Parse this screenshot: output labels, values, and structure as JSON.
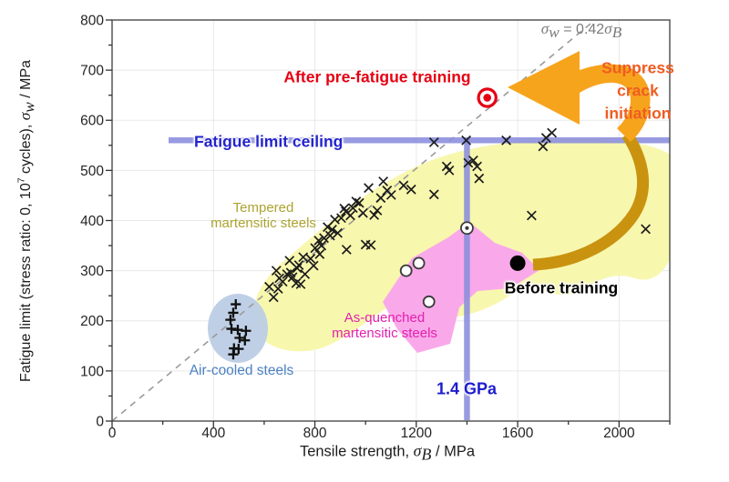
{
  "chart_data": {
    "type": "scatter",
    "x_axis": {
      "label_pre": "Tensile strength, ",
      "label_sym": "σ",
      "label_sub": "B",
      "label_post": " / MPa",
      "ticks": [
        0,
        400,
        800,
        1200,
        1600,
        2000
      ],
      "minor_step": 200,
      "max": 2200
    },
    "y_axis": {
      "label_pre": "Fatigue limit (stress ratio: 0, 10",
      "label_sup": "7",
      "label_mid": " cycles), ",
      "label_sym": "σ",
      "label_sub": "w",
      "label_post": " / MPa",
      "ticks": [
        0,
        100,
        200,
        300,
        400,
        500,
        600,
        700,
        800
      ],
      "minor_step": 50,
      "max": 800
    },
    "grid": true,
    "reference_line": {
      "slope": 0.42,
      "color": "#9a9a9a",
      "label_color": "#7b7c7e",
      "label_sym1": "σ",
      "label_sub1": "w",
      "label_mid": " = 0.42",
      "label_sym2": "σ",
      "label_sub2": "B"
    },
    "fatigue_limit_ceiling": {
      "label": "Fatigue limit ceiling",
      "value": 560,
      "color": "#8a8edd",
      "label_color": "#2424cd"
    },
    "strength_line": {
      "label": "1.4 GPa",
      "value": 1400,
      "color": "#8a8edd",
      "label_color": "#1d1dcf"
    },
    "regions": [
      {
        "id": "tempered",
        "label_lines": [
          "Tempered",
          "martensitic steels"
        ],
        "label_color": "#ada32f",
        "fill": "#f8f7ae"
      },
      {
        "id": "as_quenched",
        "label_lines": [
          "As-quenched",
          "martensitic steels"
        ],
        "label_color": "#e420ae",
        "fill": "#f9a9e9"
      },
      {
        "id": "air_cooled",
        "label": "Air-cooled steels",
        "label_color": "#4a80c2",
        "fill": "#bccde5"
      }
    ],
    "series": [
      {
        "name": "tempered-martensitic-steels",
        "marker": "x",
        "color": "#1c1c1c",
        "points": [
          [
            620,
            268
          ],
          [
            637,
            247
          ],
          [
            648,
            300
          ],
          [
            655,
            264
          ],
          [
            660,
            285
          ],
          [
            673,
            278
          ],
          [
            690,
            293
          ],
          [
            700,
            320
          ],
          [
            705,
            296
          ],
          [
            712,
            287
          ],
          [
            726,
            275
          ],
          [
            730,
            305
          ],
          [
            737,
            311
          ],
          [
            744,
            273
          ],
          [
            754,
            327
          ],
          [
            761,
            293
          ],
          [
            783,
            324
          ],
          [
            795,
            310
          ],
          [
            801,
            345
          ],
          [
            815,
            360
          ],
          [
            819,
            333
          ],
          [
            826,
            350
          ],
          [
            836,
            365
          ],
          [
            850,
            387
          ],
          [
            860,
            370
          ],
          [
            868,
            382
          ],
          [
            879,
            402
          ],
          [
            890,
            375
          ],
          [
            904,
            405
          ],
          [
            916,
            424
          ],
          [
            922,
            418
          ],
          [
            925,
            342
          ],
          [
            940,
            410
          ],
          [
            950,
            425
          ],
          [
            963,
            438
          ],
          [
            975,
            435
          ],
          [
            990,
            415
          ],
          [
            1000,
            352
          ],
          [
            1012,
            465
          ],
          [
            1021,
            351
          ],
          [
            1034,
            411
          ],
          [
            1046,
            420
          ],
          [
            1060,
            445
          ],
          [
            1070,
            478
          ],
          [
            1085,
            460
          ],
          [
            1101,
            451
          ],
          [
            1150,
            470
          ],
          [
            1180,
            462
          ],
          [
            1270,
            452
          ],
          [
            1270,
            556
          ],
          [
            1320,
            508
          ],
          [
            1330,
            500
          ],
          [
            1397,
            560
          ],
          [
            1405,
            515
          ],
          [
            1425,
            520
          ],
          [
            1440,
            508
          ],
          [
            1448,
            484
          ],
          [
            1555,
            560
          ],
          [
            1655,
            410
          ],
          [
            1700,
            548
          ],
          [
            1712,
            565
          ],
          [
            1735,
            575
          ],
          [
            2105,
            383
          ]
        ]
      },
      {
        "name": "air-cooled-steels",
        "marker": "plus",
        "color": "#111111",
        "points": [
          [
            488,
            233
          ],
          [
            478,
            216
          ],
          [
            467,
            202
          ],
          [
            471,
            184
          ],
          [
            496,
            182
          ],
          [
            528,
            180
          ],
          [
            503,
            166
          ],
          [
            524,
            161
          ],
          [
            481,
            145
          ],
          [
            499,
            144
          ],
          [
            478,
            133
          ]
        ]
      },
      {
        "name": "as-quenched-martensitic-steels",
        "marker": "ring",
        "color": "#3a3a3a",
        "points": [
          [
            1160,
            300
          ],
          [
            1210,
            315
          ],
          [
            1250,
            238
          ]
        ]
      },
      {
        "name": "as-quenched-on-line",
        "marker": "ring-dot",
        "color": "#3a3a3a",
        "points": [
          [
            1400,
            385
          ]
        ]
      },
      {
        "name": "before-training",
        "marker": "dot",
        "color": "#000000",
        "points": [
          [
            1600,
            315
          ]
        ]
      },
      {
        "name": "after-pre-fatigue-training",
        "marker": "double-circle",
        "color": "#e60013",
        "points": [
          [
            1480,
            645
          ]
        ]
      }
    ],
    "annotations": {
      "after_training": {
        "text": "After pre-fatigue training",
        "color": "#e60013"
      },
      "suppress": {
        "lines": [
          "Suppress",
          "crack",
          "initiation"
        ],
        "color": "#ef5c22"
      },
      "before_training": {
        "text": "Before training",
        "color": "#000000"
      },
      "arrow_color": "#f7a41d",
      "ribbon_color": "#c9930f"
    },
    "xlim": [
      0,
      2200
    ],
    "ylim": [
      0,
      800
    ],
    "legend": "none"
  }
}
